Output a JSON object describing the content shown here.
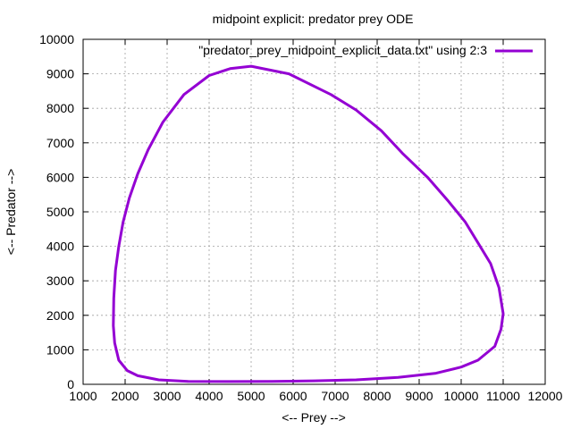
{
  "chart_data": {
    "type": "line",
    "title": "midpoint explicit: predator prey ODE",
    "xlabel": "<-- Prey -->",
    "ylabel": "<-- Predator -->",
    "xlim": [
      1000,
      12000
    ],
    "ylim": [
      0,
      10000
    ],
    "xticks": [
      1000,
      2000,
      3000,
      4000,
      5000,
      6000,
      7000,
      8000,
      9000,
      10000,
      11000,
      12000
    ],
    "yticks": [
      0,
      1000,
      2000,
      3000,
      4000,
      5000,
      6000,
      7000,
      8000,
      9000,
      10000
    ],
    "grid": true,
    "legend_position": "top-right",
    "series": [
      {
        "name": "\"predator_prey_midpoint_explicit_data.txt\" using 2:3",
        "color": "#9400d3",
        "x": [
          5000,
          5900,
          6900,
          7500,
          8100,
          8600,
          9200,
          9700,
          10100,
          10400,
          10700,
          10900,
          11000,
          10950,
          10800,
          10400,
          10000,
          9400,
          8500,
          7500,
          6500,
          5500,
          4500,
          3500,
          2800,
          2300,
          2050,
          1850,
          1750,
          1720,
          1730,
          1770,
          1850,
          1950,
          2100,
          2300,
          2550,
          2900,
          3400,
          4000,
          4500,
          5000
        ],
        "y": [
          9220,
          9000,
          8400,
          7950,
          7350,
          6700,
          6000,
          5300,
          4700,
          4100,
          3500,
          2800,
          2050,
          1600,
          1100,
          700,
          500,
          320,
          200,
          130,
          100,
          85,
          80,
          85,
          130,
          250,
          400,
          700,
          1200,
          1700,
          2500,
          3300,
          4000,
          4700,
          5400,
          6100,
          6800,
          7600,
          8400,
          8950,
          9150,
          9220
        ]
      }
    ]
  }
}
